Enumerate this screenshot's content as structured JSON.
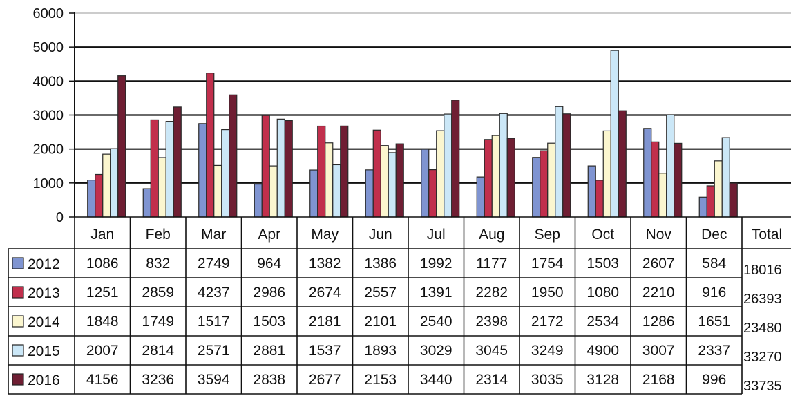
{
  "chart_data": {
    "type": "bar",
    "categories": [
      "Jan",
      "Feb",
      "Mar",
      "Apr",
      "May",
      "Jun",
      "Jul",
      "Aug",
      "Sep",
      "Oct",
      "Nov",
      "Dec"
    ],
    "series": [
      {
        "name": "2012",
        "color": "#7f94d1",
        "values": [
          1086,
          832,
          2749,
          964,
          1382,
          1386,
          1992,
          1177,
          1754,
          1503,
          2607,
          584
        ]
      },
      {
        "name": "2013",
        "color": "#c12f4c",
        "values": [
          1251,
          2859,
          4237,
          2986,
          2674,
          2557,
          1391,
          2282,
          1950,
          1080,
          2210,
          916
        ]
      },
      {
        "name": "2014",
        "color": "#fbf6cf",
        "values": [
          1848,
          1749,
          1517,
          1503,
          2181,
          2101,
          2540,
          2398,
          2172,
          2534,
          1286,
          1651
        ]
      },
      {
        "name": "2015",
        "color": "#cbe7f7",
        "values": [
          2007,
          2814,
          2571,
          2881,
          1537,
          1893,
          3029,
          3045,
          3249,
          4900,
          3007,
          2337
        ]
      },
      {
        "name": "2016",
        "color": "#6f1e33",
        "values": [
          4156,
          3236,
          3594,
          2838,
          2677,
          2153,
          3440,
          2314,
          3035,
          3128,
          2168,
          996
        ]
      }
    ],
    "total_label": "Total",
    "totals": [
      18016,
      26393,
      23480,
      33270,
      33735
    ],
    "ylim": [
      0,
      6000
    ],
    "yticks": [
      0,
      1000,
      2000,
      3000,
      4000,
      5000,
      6000
    ],
    "grid": true,
    "legend": "data-table"
  }
}
